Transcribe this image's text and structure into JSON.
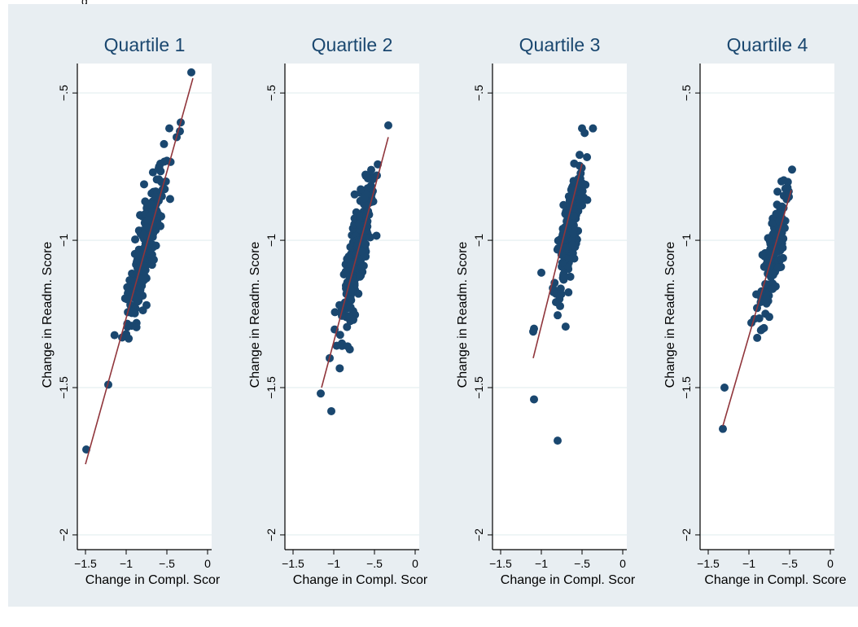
{
  "figure": {
    "top_text": "g"
  },
  "colors": {
    "figure_bg": "#e8eef2",
    "plot_bg": "#ffffff",
    "gridline": "#eaf2f3",
    "marker": "#1a476f",
    "fit_line": "#90353b"
  },
  "chart_data": [
    {
      "type": "scatter",
      "title": "Quartile 1",
      "xlabel": "Change in Compl. Scor",
      "ylabel": "Change in Readm. Score",
      "xlim": [
        -1.6,
        0.05
      ],
      "ylim": [
        -2.05,
        -0.4
      ],
      "x_ticks": [
        -1.5,
        -1,
        -0.5,
        0
      ],
      "x_tick_labels": [
        "−1.5",
        "−1",
        "−.5",
        "0"
      ],
      "y_ticks": [
        -0.5,
        -1,
        -1.5,
        -2
      ],
      "y_tick_labels": [
        "−.5",
        "−1",
        "−1.5",
        "−2"
      ],
      "grid": true,
      "fit_line": {
        "x": [
          -1.5,
          -0.18
        ],
        "y": [
          -1.76,
          -0.45
        ]
      },
      "outliers": [
        [
          -0.2,
          -0.43
        ],
        [
          -0.33,
          -0.6
        ],
        [
          -0.34,
          -0.63
        ],
        [
          -0.38,
          -0.65
        ],
        [
          -0.47,
          -0.62
        ],
        [
          -0.5,
          -0.73
        ],
        [
          -0.78,
          -0.81
        ],
        [
          -1.05,
          -1.33
        ],
        [
          -1.22,
          -1.49
        ],
        [
          -1.49,
          -1.71
        ],
        [
          -0.98,
          -1.18
        ],
        [
          -0.99,
          -1.2
        ],
        [
          -0.75,
          -1.22
        ]
      ],
      "cluster": {
        "n": 240,
        "x_center": -0.76,
        "x_spread": 0.11,
        "slope": 1.0,
        "y_at_center": -1.02,
        "y_noise": 0.07
      }
    },
    {
      "type": "scatter",
      "title": "Quartile 2",
      "xlabel": "Change in Compl. Scor",
      "ylabel": "Change in Readm. Score",
      "xlim": [
        -1.6,
        0.05
      ],
      "ylim": [
        -2.05,
        -0.4
      ],
      "x_ticks": [
        -1.5,
        -1,
        -0.5,
        0
      ],
      "x_tick_labels": [
        "−1.5",
        "−1",
        "−.5",
        "0"
      ],
      "y_ticks": [
        -0.5,
        -1,
        -1.5,
        -2
      ],
      "y_tick_labels": [
        "−.5",
        "−1",
        "−1.5",
        "−2"
      ],
      "grid": true,
      "fit_line": {
        "x": [
          -1.15,
          -0.33
        ],
        "y": [
          -1.5,
          -0.65
        ]
      },
      "outliers": [
        [
          -0.33,
          -0.61
        ],
        [
          -0.47,
          -0.78
        ],
        [
          -0.58,
          -0.79
        ],
        [
          -1.16,
          -1.52
        ],
        [
          -1.05,
          -1.4
        ],
        [
          -1.03,
          -1.58
        ],
        [
          -0.9,
          -1.35
        ],
        [
          -0.83,
          -1.36
        ],
        [
          -0.76,
          -1.27
        ],
        [
          -0.93,
          -1.22
        ]
      ],
      "cluster": {
        "n": 230,
        "x_center": -0.7,
        "x_spread": 0.1,
        "slope": 1.0,
        "y_at_center": -1.03,
        "y_noise": 0.07
      }
    },
    {
      "type": "scatter",
      "title": "Quartile 3",
      "xlabel": "Change in Compl. Scor",
      "ylabel": "Change in Readm. Score",
      "xlim": [
        -1.6,
        0.05
      ],
      "ylim": [
        -2.05,
        -0.4
      ],
      "x_ticks": [
        -1.5,
        -1,
        -0.5,
        0
      ],
      "x_tick_labels": [
        "−1.5",
        "−1",
        "−.5",
        "0"
      ],
      "y_ticks": [
        -0.5,
        -1,
        -1.5,
        -2
      ],
      "y_tick_labels": [
        "−.5",
        "−1",
        "−1.5",
        "−2"
      ],
      "grid": true,
      "fit_line": {
        "x": [
          -1.1,
          -0.5
        ],
        "y": [
          -1.4,
          -0.74
        ]
      },
      "outliers": [
        [
          -0.5,
          -0.62
        ],
        [
          -0.53,
          -0.71
        ],
        [
          -1.1,
          -1.31
        ],
        [
          -1.09,
          -1.3
        ],
        [
          -1.09,
          -1.54
        ],
        [
          -0.8,
          -1.68
        ],
        [
          -0.82,
          -1.21
        ],
        [
          -1.0,
          -1.11
        ]
      ],
      "cluster": {
        "n": 200,
        "x_center": -0.65,
        "x_spread": 0.09,
        "slope": 1.0,
        "y_at_center": -0.96,
        "y_noise": 0.07
      }
    },
    {
      "type": "scatter",
      "title": "Quartile 4",
      "xlabel": "Change in Compl. Score",
      "ylabel": "Change in Readm. Score",
      "xlim": [
        -1.6,
        0.05
      ],
      "ylim": [
        -2.05,
        -0.4
      ],
      "x_ticks": [
        -1.5,
        -1,
        -0.5,
        0
      ],
      "x_tick_labels": [
        "−1.5",
        "−1",
        "−.5",
        "0"
      ],
      "y_ticks": [
        -0.5,
        -1,
        -1.5,
        -2
      ],
      "y_tick_labels": [
        "−.5",
        "−1",
        "−1.5",
        "−2"
      ],
      "grid": true,
      "fit_line": {
        "x": [
          -1.32,
          -0.48
        ],
        "y": [
          -1.63,
          -0.83
        ]
      },
      "outliers": [
        [
          -0.47,
          -0.76
        ],
        [
          -1.3,
          -1.5
        ],
        [
          -1.32,
          -1.64
        ],
        [
          -0.97,
          -1.28
        ],
        [
          -0.75,
          -1.26
        ],
        [
          -0.9,
          -1.23
        ],
        [
          -0.6,
          -0.8
        ]
      ],
      "cluster": {
        "n": 140,
        "x_center": -0.7,
        "x_spread": 0.08,
        "slope": 1.0,
        "y_at_center": -1.05,
        "y_noise": 0.07
      }
    }
  ]
}
